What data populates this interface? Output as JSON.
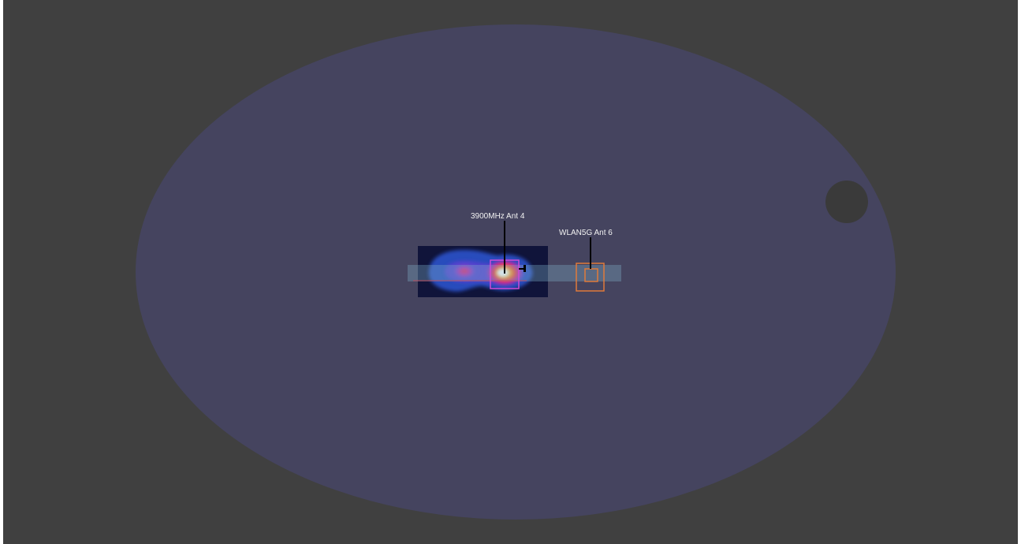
{
  "viewport": {
    "background": "#404040"
  },
  "model": {
    "body_color": "#45445f",
    "hole_color": "#3a3a3a"
  },
  "heatmap": {
    "background": "#10143a",
    "colormap": [
      "#1c2a8a",
      "#2f57c8",
      "#6b3fd0",
      "#c025a8",
      "#f0302f",
      "#ff8a1a",
      "#ffe680",
      "#ffffff"
    ]
  },
  "antennas": [
    {
      "name": "3900MHz Ant 4",
      "marker_color": "#d04ad6"
    },
    {
      "name": "WLAN5G Ant 6",
      "marker_color": "#e07a3a"
    }
  ]
}
